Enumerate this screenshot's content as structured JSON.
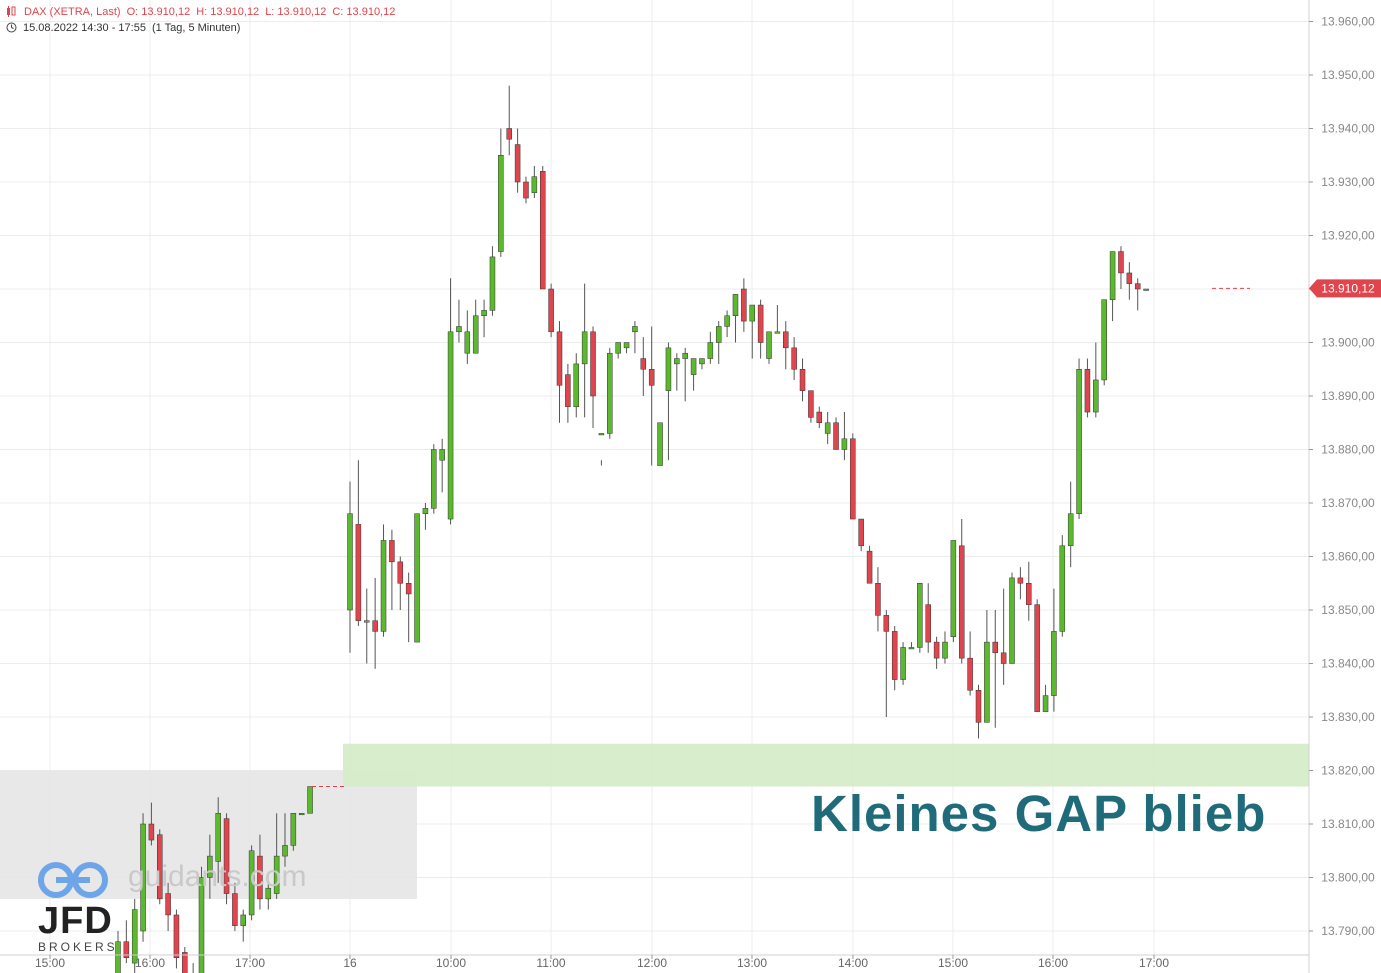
{
  "header": {
    "instrument": "DAX (XETRA, Last)",
    "open": "O: 13.910,12",
    "high": "H: 13.910,12",
    "low": "L: 13.910,12",
    "close": "C: 13.910,12",
    "range": "15.08.2022 14:30 - 17:55",
    "interval": "(1 Tag, 5 Minuten)"
  },
  "annotation": "Kleines GAP blieb",
  "watermark": "guidants.com",
  "brand": {
    "name": "JFD",
    "sub": "BROKERS"
  },
  "colors": {
    "up": "#5cb82f",
    "down": "#e0454d",
    "gap_zone": "#d6ecc9",
    "prev_zone": "#e5e5e5",
    "annotation": "#1f6b7a"
  },
  "chart_data": {
    "type": "candlestick",
    "y_axis": {
      "min": 13785,
      "max": 13965,
      "ticks": [
        13960,
        13950,
        13940,
        13930,
        13920,
        13910,
        13900,
        13890,
        13880,
        13870,
        13860,
        13850,
        13840,
        13830,
        13820,
        13810,
        13800,
        13790
      ],
      "tick_labels": [
        "13.960,00",
        "13.950,00",
        "13.940,00",
        "13.930,00",
        "13.920,00",
        "13.910,00",
        "13.900,00",
        "13.890,00",
        "13.880,00",
        "13.870,00",
        "13.860,00",
        "13.850,00",
        "13.840,00",
        "13.830,00",
        "13.820,00",
        "13.810,00",
        "13.800,00",
        "13.790,00"
      ],
      "position": "right"
    },
    "x_axis": {
      "labels": [
        "15:00",
        "16:00",
        "17:00",
        "16",
        "10:00",
        "11:00",
        "12:00",
        "13:00",
        "14:00",
        "15:00",
        "16:00",
        "17:00"
      ]
    },
    "last_price": 13910.12,
    "last_price_label": "13.910,12",
    "zones": [
      {
        "name": "previous-day-range",
        "from": 13796,
        "to": 13820
      },
      {
        "name": "gap-zone",
        "from": 13817,
        "to": 13825
      }
    ],
    "candles_day1": [
      [
        13780,
        13790,
        13775,
        13788
      ],
      [
        13788,
        13792,
        13784,
        13785
      ],
      [
        13784,
        13796,
        13782,
        13794
      ],
      [
        13790,
        13812,
        13788,
        13810
      ],
      [
        13810,
        13814,
        13806,
        13807
      ],
      [
        13808,
        13809,
        13795,
        13796
      ],
      [
        13797,
        13799,
        13790,
        13793
      ],
      [
        13793,
        13794,
        13783,
        13785
      ],
      [
        13786,
        13787,
        13779,
        13780
      ],
      [
        13780,
        13784,
        13778,
        13782
      ],
      [
        13782,
        13802,
        13780,
        13800
      ],
      [
        13800,
        13808,
        13796,
        13804
      ],
      [
        13803,
        13815,
        13799,
        13812
      ],
      [
        13811,
        13812,
        13795,
        13797
      ],
      [
        13797,
        13799,
        13790,
        13791
      ],
      [
        13791,
        13794,
        13788,
        13793
      ],
      [
        13793,
        13806,
        13792,
        13805
      ],
      [
        13804,
        13808,
        13794,
        13796
      ],
      [
        13796,
        13799,
        13794,
        13798
      ],
      [
        13797,
        13812,
        13796,
        13804
      ],
      [
        13804,
        13812,
        13802,
        13806
      ],
      [
        13806,
        13812,
        13805,
        13812
      ],
      [
        13812,
        13812,
        13812,
        13812
      ],
      [
        13812,
        13817,
        13812,
        13817
      ]
    ],
    "candles_day2": [
      [
        13850,
        13874,
        13842,
        13868
      ],
      [
        13866,
        13878,
        13847,
        13848
      ],
      [
        13848,
        13854,
        13840,
        13848
      ],
      [
        13848,
        13856,
        13839,
        13846
      ],
      [
        13846,
        13866,
        13845,
        13863
      ],
      [
        13863,
        13865,
        13850,
        13859
      ],
      [
        13859,
        13860,
        13850,
        13855
      ],
      [
        13855,
        13857,
        13844,
        13853
      ],
      [
        13844,
        13862,
        13844,
        13868
      ],
      [
        13868,
        13870,
        13865,
        13869
      ],
      [
        13869,
        13881,
        13868,
        13880
      ],
      [
        13878,
        13882,
        13872,
        13880
      ],
      [
        13867,
        13912,
        13866,
        13902
      ],
      [
        13902,
        13908,
        13900,
        13903
      ],
      [
        13898,
        13906,
        13896,
        13902
      ],
      [
        13898,
        13908,
        13898,
        13905
      ],
      [
        13905,
        13908,
        13901,
        13906
      ],
      [
        13906,
        13918,
        13905,
        13916
      ],
      [
        13917,
        13940,
        13916,
        13935
      ],
      [
        13940,
        13948,
        13935,
        13938
      ],
      [
        13937,
        13940,
        13928,
        13930
      ],
      [
        13930,
        13931,
        13926,
        13927
      ],
      [
        13928,
        13933,
        13927,
        13931
      ],
      [
        13932,
        13933,
        13910,
        13910
      ],
      [
        13910,
        13911,
        13901,
        13902
      ],
      [
        13902,
        13904,
        13885,
        13892
      ],
      [
        13894,
        13896,
        13885,
        13888
      ],
      [
        13888,
        13898,
        13886,
        13896
      ],
      [
        13896,
        13911,
        13886,
        13902
      ],
      [
        13902,
        13903,
        13884,
        13890
      ],
      [
        13883,
        13878,
        13877,
        13883
      ],
      [
        13883,
        13899,
        13882,
        13898
      ],
      [
        13898,
        13900,
        13897,
        13900
      ],
      [
        13899,
        13900,
        13898,
        13900
      ],
      [
        13902,
        13904,
        13898,
        13903
      ],
      [
        13897,
        13901,
        13890,
        13895
      ],
      [
        13895,
        13903,
        13877,
        13892
      ],
      [
        13877,
        13885,
        13884,
        13885
      ],
      [
        13891,
        13900,
        13878,
        13899
      ],
      [
        13896,
        13898,
        13891,
        13897
      ],
      [
        13897,
        13899,
        13889,
        13898
      ],
      [
        13894,
        13897,
        13891,
        13897
      ],
      [
        13896,
        13897,
        13895,
        13897
      ],
      [
        13897,
        13902,
        13896,
        13900
      ],
      [
        13900,
        13904,
        13896,
        13903
      ],
      [
        13903,
        13906,
        13901,
        13905
      ],
      [
        13905,
        13909,
        13900,
        13909
      ],
      [
        13910,
        13912,
        13902,
        13904
      ],
      [
        13904,
        13907,
        13897,
        13907
      ],
      [
        13907,
        13908,
        13897,
        13900
      ],
      [
        13897,
        13902,
        13896,
        13902
      ],
      [
        13902,
        13907,
        13902,
        13902
      ],
      [
        13902,
        13904,
        13895,
        13899
      ],
      [
        13899,
        13901,
        13893,
        13895
      ],
      [
        13895,
        13897,
        13889,
        13891
      ],
      [
        13891,
        13891,
        13885,
        13886
      ],
      [
        13887,
        13888,
        13884,
        13885
      ],
      [
        13883,
        13887,
        13881,
        13885
      ],
      [
        13885,
        13886,
        13880,
        13880
      ],
      [
        13880,
        13887,
        13878,
        13882
      ],
      [
        13882,
        13883,
        13868,
        13867
      ],
      [
        13867,
        13867,
        13861,
        13862
      ],
      [
        13861,
        13862,
        13855,
        13855
      ],
      [
        13855,
        13858,
        13846,
        13849
      ],
      [
        13849,
        13850,
        13830,
        13846
      ],
      [
        13846,
        13847,
        13835,
        13837
      ],
      [
        13837,
        13844,
        13836,
        13843
      ],
      [
        13843,
        13844,
        13843,
        13843
      ],
      [
        13843,
        13853,
        13842,
        13855
      ],
      [
        13851,
        13855,
        13842,
        13844
      ],
      [
        13844,
        13845,
        13839,
        13841
      ],
      [
        13841,
        13846,
        13840,
        13844
      ],
      [
        13845,
        13862,
        13844,
        13863
      ],
      [
        13862,
        13867,
        13840,
        13841
      ],
      [
        13841,
        13846,
        13834,
        13835
      ],
      [
        13835,
        13836,
        13826,
        13829
      ],
      [
        13829,
        13850,
        13830,
        13844
      ],
      [
        13844,
        13850,
        13828,
        13842
      ],
      [
        13842,
        13854,
        13836,
        13840
      ],
      [
        13840,
        13857,
        13841,
        13856
      ],
      [
        13856,
        13858,
        13852,
        13855
      ],
      [
        13855,
        13859,
        13848,
        13851
      ],
      [
        13851,
        13852,
        13831,
        13831
      ],
      [
        13831,
        13836,
        13832,
        13834
      ],
      [
        13834,
        13854,
        13831,
        13846
      ],
      [
        13846,
        13864,
        13845,
        13862
      ],
      [
        13862,
        13874,
        13858,
        13868
      ],
      [
        13868,
        13897,
        13867,
        13895
      ],
      [
        13895,
        13897,
        13886,
        13887
      ],
      [
        13887,
        13900,
        13886,
        13893
      ],
      [
        13893,
        13907,
        13892,
        13908
      ],
      [
        13908,
        13917,
        13904,
        13917
      ],
      [
        13917,
        13918,
        13910,
        13913
      ],
      [
        13913,
        13915,
        13908,
        13911
      ],
      [
        13911,
        13912,
        13906,
        13910
      ],
      [
        13910,
        13910,
        13910,
        13910
      ]
    ]
  }
}
